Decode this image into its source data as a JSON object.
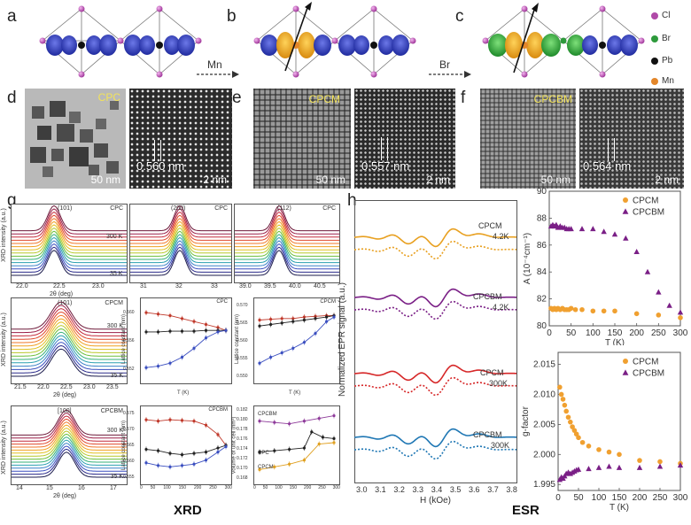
{
  "structure_panels": {
    "labels": [
      "a",
      "b",
      "c"
    ],
    "arrow1_label": "Mn",
    "arrow2_label": "Br",
    "legend": [
      {
        "name": "Cl",
        "color": "#b04aa8"
      },
      {
        "name": "Br",
        "color": "#2e9a3c"
      },
      {
        "name": "Pb",
        "color": "#111111"
      },
      {
        "name": "Mn",
        "color": "#e3862a"
      }
    ]
  },
  "em_panels": {
    "labels": [
      "d",
      "e",
      "f"
    ],
    "sample_names": [
      "CPC",
      "CPCM",
      "CPCBM"
    ],
    "scale_low": [
      "50 nm",
      "50 nm",
      "50 nm"
    ],
    "scale_high": [
      "2 nm",
      "2 nm",
      "2 nm"
    ],
    "lattice": [
      "0.560 nm",
      "0.557 nm",
      "0.564 nm"
    ]
  },
  "xrd": {
    "label": "g",
    "footer": "XRD",
    "row1": {
      "ylabel": "XRD intensity (a.u.)",
      "titles": [
        "(101)",
        "(200)",
        "(112)"
      ],
      "sample": "CPC",
      "xticks": [
        [
          "22.0",
          "22.5",
          "23.0"
        ],
        [
          "31",
          "32",
          "33"
        ],
        [
          "39.0",
          "39.5",
          "40.0",
          "40.5"
        ]
      ],
      "xlabel": "2θ (deg)",
      "t_high": "300 K",
      "t_low": "35 K"
    },
    "row2": {
      "ylabel": "XRD intensity (a.u.)",
      "title": "(101)",
      "sample": "CPCM",
      "xticks": [
        "21.5",
        "22.0",
        "22.5",
        "23.0",
        "23.5"
      ],
      "xlabel": "2θ (deg)",
      "t_high": "300 K",
      "t_low": "35 K",
      "lattice_ylabel": "Lattice constant (nm)",
      "lattice_left_title": "CPC",
      "lattice_right_title": "CPCM",
      "t_xlabel": "T (K)",
      "t_ticks": [
        "0",
        "50",
        "100",
        "150",
        "200",
        "250",
        "300"
      ],
      "left_yticks": [
        "0.560",
        "0.556",
        "0.552"
      ],
      "right_yticks": [
        "0.570",
        "0.565",
        "0.560",
        "0.555",
        "0.550"
      ]
    },
    "row3": {
      "ylabel": "XRD intensity (a.u.)",
      "title": "[100]",
      "sample": "CPCBM",
      "xticks": [
        "14",
        "15",
        "16",
        "17"
      ],
      "xlabel": "2θ (deg)",
      "t_high": "300 K",
      "t_low": "35 K",
      "lattice_ylabel": "Lattice constant (nm)",
      "lattice_title": "CPCBM",
      "vol_ylabel": "Volume of unit cell (nm³)",
      "vol_labels": [
        "CPCBM",
        "CPC",
        "CPCM"
      ],
      "left_yticks": [
        "0.575",
        "0.570",
        "0.565",
        "0.560",
        "0.555"
      ],
      "right_yticks": [
        "0.182",
        "0.180",
        "0.178",
        "0.176",
        "0.174",
        "0.172",
        "0.170",
        "0.168"
      ]
    }
  },
  "esr": {
    "label": "h",
    "footer": "ESR",
    "ylabel": "Normalized EPR signal (a.u.)",
    "xlabel": "H (kOe)",
    "xticks": [
      "3.0",
      "3.1",
      "3.2",
      "3.3",
      "3.4",
      "3.5",
      "3.6",
      "3.7",
      "3.8"
    ],
    "traces": [
      {
        "name": "CPCM",
        "temp": "4.2K",
        "color": "#e8a020"
      },
      {
        "name": "CPCBM",
        "temp": "4.2K",
        "color": "#7a1f86"
      },
      {
        "name": "CPCM",
        "temp": "300K",
        "color": "#d62728"
      },
      {
        "name": "CPCBM",
        "temp": "300K",
        "color": "#1f77b4"
      }
    ]
  },
  "chart_data": [
    {
      "type": "scatter",
      "title": "",
      "xlabel": "T (K)",
      "ylabel": "A (10⁻⁴cm⁻¹)",
      "xlim": [
        0,
        300
      ],
      "ylim": [
        80,
        90
      ],
      "xticks": [
        "0",
        "50",
        "100",
        "150",
        "200",
        "250",
        "300"
      ],
      "yticks": [
        "90",
        "88",
        "86",
        "84",
        "82",
        "80"
      ],
      "legend_position": "top-right",
      "series": [
        {
          "name": "CPCM",
          "marker": "circle",
          "color": "#f0a030",
          "x": [
            4,
            8,
            12,
            16,
            20,
            25,
            30,
            35,
            40,
            45,
            50,
            60,
            75,
            100,
            125,
            150,
            200,
            250,
            300
          ],
          "y": [
            81.3,
            81.2,
            81.3,
            81.2,
            81.3,
            81.2,
            81.3,
            81.2,
            81.2,
            81.2,
            81.3,
            81.2,
            81.2,
            81.1,
            81.1,
            81.1,
            80.9,
            80.8,
            80.6
          ]
        },
        {
          "name": "CPCBM",
          "marker": "triangle",
          "color": "#7a1f86",
          "x": [
            4,
            8,
            12,
            16,
            20,
            25,
            30,
            35,
            40,
            45,
            50,
            75,
            100,
            125,
            150,
            175,
            200,
            225,
            250,
            275,
            300
          ],
          "y": [
            87.4,
            87.5,
            87.4,
            87.5,
            87.3,
            87.4,
            87.3,
            87.3,
            87.2,
            87.2,
            87.2,
            87.2,
            87.2,
            87.0,
            86.8,
            86.5,
            85.5,
            84.0,
            82.5,
            81.5,
            81.0
          ]
        }
      ]
    },
    {
      "type": "scatter",
      "title": "",
      "xlabel": "T (K)",
      "ylabel": "g-factor",
      "xlim": [
        0,
        300
      ],
      "ylim": [
        1.994,
        2.017
      ],
      "xticks": [
        "0",
        "50",
        "100",
        "150",
        "200",
        "250",
        "300"
      ],
      "yticks": [
        "2.015",
        "2.010",
        "2.005",
        "2.000",
        "1.995"
      ],
      "legend_position": "top-right",
      "series": [
        {
          "name": "CPCM",
          "marker": "circle",
          "color": "#f0a030",
          "x": [
            4,
            8,
            12,
            16,
            20,
            25,
            30,
            35,
            40,
            45,
            50,
            60,
            75,
            100,
            125,
            150,
            200,
            250,
            300
          ],
          "y": [
            2.0112,
            2.01,
            2.0092,
            2.0082,
            2.0072,
            2.0062,
            2.0054,
            2.0046,
            2.004,
            2.0034,
            2.0028,
            2.002,
            2.0014,
            2.0008,
            2.0004,
            2.0,
            1.999,
            1.9988,
            1.9985
          ]
        },
        {
          "name": "CPCBM",
          "marker": "triangle",
          "color": "#7a1f86",
          "x": [
            4,
            8,
            12,
            16,
            20,
            25,
            30,
            35,
            40,
            45,
            50,
            75,
            100,
            125,
            150,
            200,
            250,
            300
          ],
          "y": [
            1.9958,
            1.9962,
            1.996,
            1.9964,
            1.9968,
            1.997,
            1.9968,
            1.997,
            1.9972,
            1.9974,
            1.9975,
            1.9976,
            1.9978,
            1.998,
            1.9978,
            1.9978,
            1.998,
            1.9982
          ]
        }
      ]
    }
  ]
}
